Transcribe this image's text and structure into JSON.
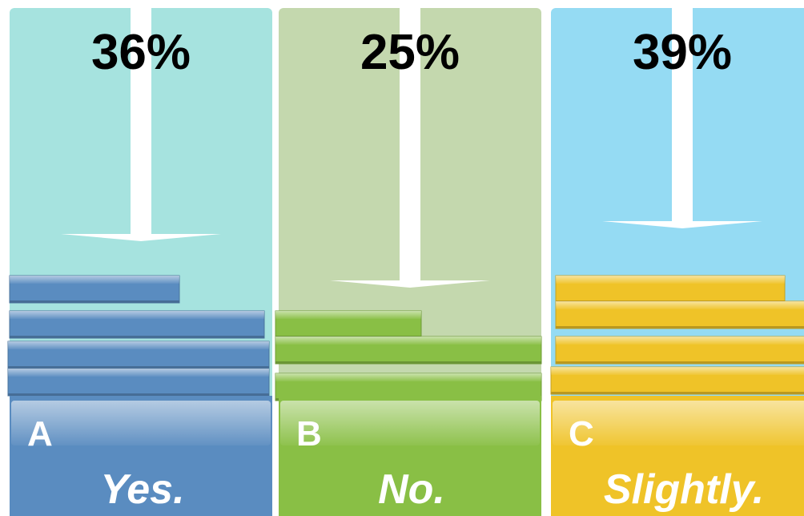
{
  "chart_data": {
    "type": "bar",
    "categories": [
      "A",
      "B",
      "C"
    ],
    "answers": [
      "Yes.",
      "No.",
      "Slightly."
    ],
    "values": [
      36,
      25,
      39
    ],
    "value_suffix": "%",
    "colors": {
      "panels": [
        "#a6e3df",
        "#c4d8ae",
        "#95dbf3"
      ],
      "bars": [
        "#5a8cc0",
        "#89bf45",
        "#efc328"
      ]
    }
  }
}
